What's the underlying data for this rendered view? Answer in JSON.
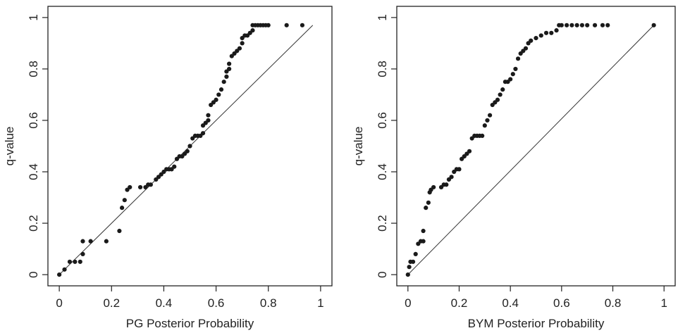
{
  "colors": {
    "background": "#ffffff",
    "axis": "#222222",
    "points": "#1a1a1a",
    "reference_line": "#333333"
  },
  "chart_data": [
    {
      "type": "scatter",
      "title": "",
      "xlabel": "PG Posterior Probability",
      "ylabel": "q-value",
      "xlim": [
        0,
        1
      ],
      "ylim": [
        0,
        1
      ],
      "x_ticks": [
        0,
        0.2,
        0.4,
        0.6,
        0.8,
        1
      ],
      "x_tick_labels": [
        "0",
        "0.2",
        "0.4",
        "0.6",
        "0.8",
        "1"
      ],
      "y_ticks": [
        0,
        0.2,
        0.4,
        0.6,
        0.8,
        1
      ],
      "y_tick_labels": [
        "0",
        "0.2",
        "0.4",
        "0.6",
        "0.8",
        "1"
      ],
      "grid": false,
      "reference_line": {
        "from": [
          0,
          0
        ],
        "to": [
          0.97,
          0.97
        ]
      },
      "points": [
        [
          0.0,
          0.0
        ],
        [
          0.02,
          0.02
        ],
        [
          0.04,
          0.05
        ],
        [
          0.06,
          0.05
        ],
        [
          0.08,
          0.05
        ],
        [
          0.09,
          0.08
        ],
        [
          0.09,
          0.13
        ],
        [
          0.12,
          0.13
        ],
        [
          0.18,
          0.13
        ],
        [
          0.23,
          0.17
        ],
        [
          0.24,
          0.26
        ],
        [
          0.25,
          0.29
        ],
        [
          0.26,
          0.33
        ],
        [
          0.27,
          0.34
        ],
        [
          0.31,
          0.34
        ],
        [
          0.33,
          0.34
        ],
        [
          0.34,
          0.35
        ],
        [
          0.35,
          0.35
        ],
        [
          0.37,
          0.37
        ],
        [
          0.38,
          0.38
        ],
        [
          0.39,
          0.39
        ],
        [
          0.4,
          0.4
        ],
        [
          0.41,
          0.41
        ],
        [
          0.42,
          0.41
        ],
        [
          0.43,
          0.41
        ],
        [
          0.44,
          0.42
        ],
        [
          0.45,
          0.45
        ],
        [
          0.46,
          0.46
        ],
        [
          0.47,
          0.46
        ],
        [
          0.48,
          0.47
        ],
        [
          0.49,
          0.48
        ],
        [
          0.5,
          0.5
        ],
        [
          0.51,
          0.53
        ],
        [
          0.52,
          0.54
        ],
        [
          0.53,
          0.54
        ],
        [
          0.54,
          0.54
        ],
        [
          0.55,
          0.55
        ],
        [
          0.55,
          0.58
        ],
        [
          0.56,
          0.59
        ],
        [
          0.57,
          0.6
        ],
        [
          0.57,
          0.62
        ],
        [
          0.58,
          0.66
        ],
        [
          0.59,
          0.67
        ],
        [
          0.6,
          0.68
        ],
        [
          0.61,
          0.7
        ],
        [
          0.62,
          0.72
        ],
        [
          0.63,
          0.75
        ],
        [
          0.64,
          0.77
        ],
        [
          0.64,
          0.79
        ],
        [
          0.65,
          0.8
        ],
        [
          0.65,
          0.82
        ],
        [
          0.66,
          0.85
        ],
        [
          0.67,
          0.86
        ],
        [
          0.68,
          0.87
        ],
        [
          0.69,
          0.88
        ],
        [
          0.7,
          0.9
        ],
        [
          0.7,
          0.92
        ],
        [
          0.71,
          0.93
        ],
        [
          0.72,
          0.93
        ],
        [
          0.73,
          0.94
        ],
        [
          0.74,
          0.95
        ],
        [
          0.74,
          0.97
        ],
        [
          0.75,
          0.97
        ],
        [
          0.76,
          0.97
        ],
        [
          0.77,
          0.97
        ],
        [
          0.78,
          0.97
        ],
        [
          0.79,
          0.97
        ],
        [
          0.8,
          0.97
        ],
        [
          0.87,
          0.97
        ],
        [
          0.93,
          0.97
        ]
      ]
    },
    {
      "type": "scatter",
      "title": "",
      "xlabel": "BYM Posterior Probability",
      "ylabel": "q-value",
      "xlim": [
        0,
        1
      ],
      "ylim": [
        0,
        1
      ],
      "x_ticks": [
        0,
        0.2,
        0.4,
        0.6,
        0.8,
        1
      ],
      "x_tick_labels": [
        "0",
        "0.2",
        "0.4",
        "0.6",
        "0.8",
        "1"
      ],
      "y_ticks": [
        0,
        0.2,
        0.4,
        0.6,
        0.8,
        1
      ],
      "y_tick_labels": [
        "0",
        "0.2",
        "0.4",
        "0.6",
        "0.8",
        "1"
      ],
      "grid": false,
      "reference_line": {
        "from": [
          0,
          0
        ],
        "to": [
          0.96,
          0.97
        ]
      },
      "points": [
        [
          0.0,
          0.0
        ],
        [
          0.005,
          0.03
        ],
        [
          0.01,
          0.05
        ],
        [
          0.02,
          0.05
        ],
        [
          0.03,
          0.08
        ],
        [
          0.04,
          0.12
        ],
        [
          0.05,
          0.13
        ],
        [
          0.06,
          0.13
        ],
        [
          0.06,
          0.17
        ],
        [
          0.07,
          0.26
        ],
        [
          0.08,
          0.28
        ],
        [
          0.085,
          0.32
        ],
        [
          0.09,
          0.33
        ],
        [
          0.1,
          0.34
        ],
        [
          0.13,
          0.34
        ],
        [
          0.14,
          0.35
        ],
        [
          0.15,
          0.35
        ],
        [
          0.16,
          0.37
        ],
        [
          0.17,
          0.38
        ],
        [
          0.18,
          0.4
        ],
        [
          0.19,
          0.41
        ],
        [
          0.2,
          0.41
        ],
        [
          0.21,
          0.45
        ],
        [
          0.22,
          0.46
        ],
        [
          0.23,
          0.47
        ],
        [
          0.24,
          0.48
        ],
        [
          0.25,
          0.53
        ],
        [
          0.26,
          0.54
        ],
        [
          0.27,
          0.54
        ],
        [
          0.28,
          0.54
        ],
        [
          0.29,
          0.54
        ],
        [
          0.3,
          0.58
        ],
        [
          0.31,
          0.6
        ],
        [
          0.32,
          0.62
        ],
        [
          0.33,
          0.66
        ],
        [
          0.34,
          0.67
        ],
        [
          0.35,
          0.68
        ],
        [
          0.36,
          0.7
        ],
        [
          0.37,
          0.72
        ],
        [
          0.38,
          0.75
        ],
        [
          0.39,
          0.75
        ],
        [
          0.4,
          0.76
        ],
        [
          0.41,
          0.78
        ],
        [
          0.42,
          0.8
        ],
        [
          0.43,
          0.84
        ],
        [
          0.44,
          0.86
        ],
        [
          0.45,
          0.87
        ],
        [
          0.46,
          0.88
        ],
        [
          0.47,
          0.9
        ],
        [
          0.48,
          0.91
        ],
        [
          0.5,
          0.92
        ],
        [
          0.52,
          0.93
        ],
        [
          0.54,
          0.94
        ],
        [
          0.56,
          0.94
        ],
        [
          0.58,
          0.95
        ],
        [
          0.59,
          0.97
        ],
        [
          0.6,
          0.97
        ],
        [
          0.62,
          0.97
        ],
        [
          0.64,
          0.97
        ],
        [
          0.66,
          0.97
        ],
        [
          0.68,
          0.97
        ],
        [
          0.7,
          0.97
        ],
        [
          0.73,
          0.97
        ],
        [
          0.76,
          0.97
        ],
        [
          0.78,
          0.97
        ],
        [
          0.96,
          0.97
        ]
      ]
    }
  ]
}
